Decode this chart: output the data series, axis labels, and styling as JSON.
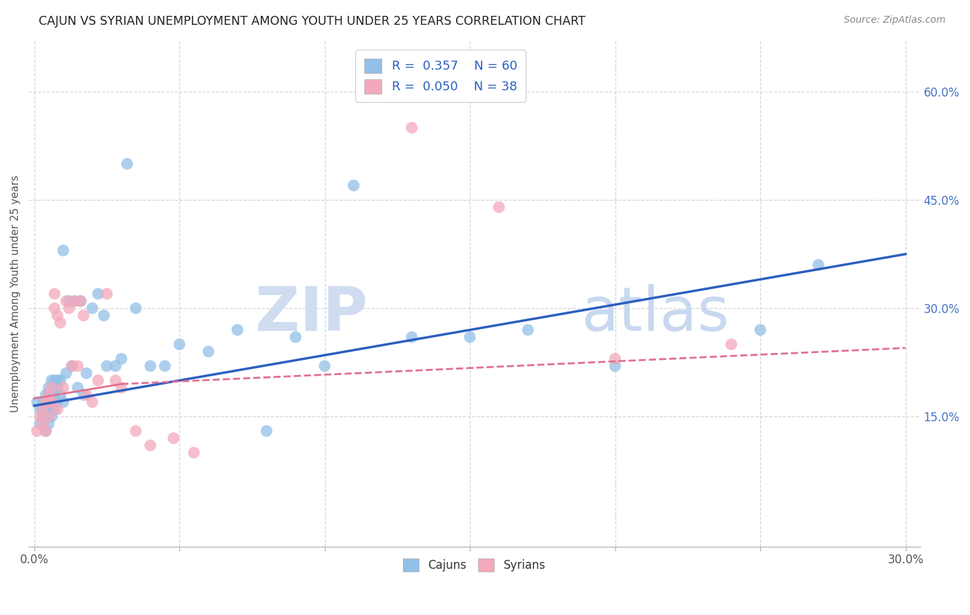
{
  "title": "CAJUN VS SYRIAN UNEMPLOYMENT AMONG YOUTH UNDER 25 YEARS CORRELATION CHART",
  "source": "Source: ZipAtlas.com",
  "ylabel": "Unemployment Among Youth under 25 years",
  "xlim": [
    -0.002,
    0.305
  ],
  "ylim": [
    -0.03,
    0.67
  ],
  "xtick_positions": [
    0.0,
    0.05,
    0.1,
    0.15,
    0.2,
    0.25,
    0.3
  ],
  "xtick_labels": [
    "0.0%",
    "",
    "",
    "",
    "",
    "",
    "30.0%"
  ],
  "ytick_vals": [
    0.15,
    0.3,
    0.45,
    0.6
  ],
  "ytick_labels": [
    "15.0%",
    "30.0%",
    "45.0%",
    "60.0%"
  ],
  "legend_R_cajun": "0.357",
  "legend_N_cajun": "60",
  "legend_R_syrian": "0.050",
  "legend_N_syrian": "38",
  "cajun_color": "#92C0E8",
  "syrian_color": "#F4A8BB",
  "cajun_line_color": "#2B5FC0",
  "syrian_line_color_solid": "#E07090",
  "syrian_line_color_dash": "#E07090",
  "watermark_text": "ZIPatlas",
  "cajuns_x": [
    0.001,
    0.002,
    0.002,
    0.003,
    0.003,
    0.003,
    0.004,
    0.004,
    0.004,
    0.004,
    0.005,
    0.005,
    0.005,
    0.005,
    0.005,
    0.006,
    0.006,
    0.006,
    0.006,
    0.007,
    0.007,
    0.007,
    0.008,
    0.008,
    0.008,
    0.009,
    0.009,
    0.01,
    0.01,
    0.011,
    0.012,
    0.013,
    0.014,
    0.015,
    0.016,
    0.017,
    0.018,
    0.02,
    0.022,
    0.024,
    0.025,
    0.028,
    0.03,
    0.032,
    0.035,
    0.04,
    0.045,
    0.05,
    0.06,
    0.07,
    0.08,
    0.09,
    0.1,
    0.11,
    0.13,
    0.15,
    0.17,
    0.2,
    0.25,
    0.27
  ],
  "cajuns_y": [
    0.17,
    0.16,
    0.14,
    0.17,
    0.16,
    0.15,
    0.18,
    0.17,
    0.16,
    0.13,
    0.19,
    0.18,
    0.17,
    0.16,
    0.14,
    0.2,
    0.18,
    0.17,
    0.15,
    0.2,
    0.18,
    0.16,
    0.2,
    0.19,
    0.17,
    0.2,
    0.18,
    0.38,
    0.17,
    0.21,
    0.31,
    0.22,
    0.31,
    0.19,
    0.31,
    0.18,
    0.21,
    0.3,
    0.32,
    0.29,
    0.22,
    0.22,
    0.23,
    0.5,
    0.3,
    0.22,
    0.22,
    0.25,
    0.24,
    0.27,
    0.13,
    0.26,
    0.22,
    0.47,
    0.26,
    0.26,
    0.27,
    0.22,
    0.27,
    0.36
  ],
  "syrians_x": [
    0.001,
    0.002,
    0.003,
    0.003,
    0.004,
    0.004,
    0.005,
    0.005,
    0.005,
    0.006,
    0.006,
    0.007,
    0.007,
    0.008,
    0.008,
    0.009,
    0.01,
    0.011,
    0.012,
    0.013,
    0.014,
    0.015,
    0.016,
    0.017,
    0.018,
    0.02,
    0.022,
    0.025,
    0.028,
    0.03,
    0.035,
    0.04,
    0.048,
    0.055,
    0.13,
    0.16,
    0.2,
    0.24
  ],
  "syrians_y": [
    0.13,
    0.15,
    0.16,
    0.14,
    0.17,
    0.13,
    0.18,
    0.17,
    0.15,
    0.19,
    0.17,
    0.32,
    0.3,
    0.29,
    0.16,
    0.28,
    0.19,
    0.31,
    0.3,
    0.22,
    0.31,
    0.22,
    0.31,
    0.29,
    0.18,
    0.17,
    0.2,
    0.32,
    0.2,
    0.19,
    0.13,
    0.11,
    0.12,
    0.1,
    0.55,
    0.44,
    0.23,
    0.25
  ],
  "cajun_trend": [
    0.0,
    0.3,
    0.165,
    0.375
  ],
  "syrian_trend_solid": [
    0.0,
    0.03,
    0.175,
    0.195
  ],
  "syrian_trend_dash": [
    0.03,
    0.3,
    0.195,
    0.245
  ]
}
